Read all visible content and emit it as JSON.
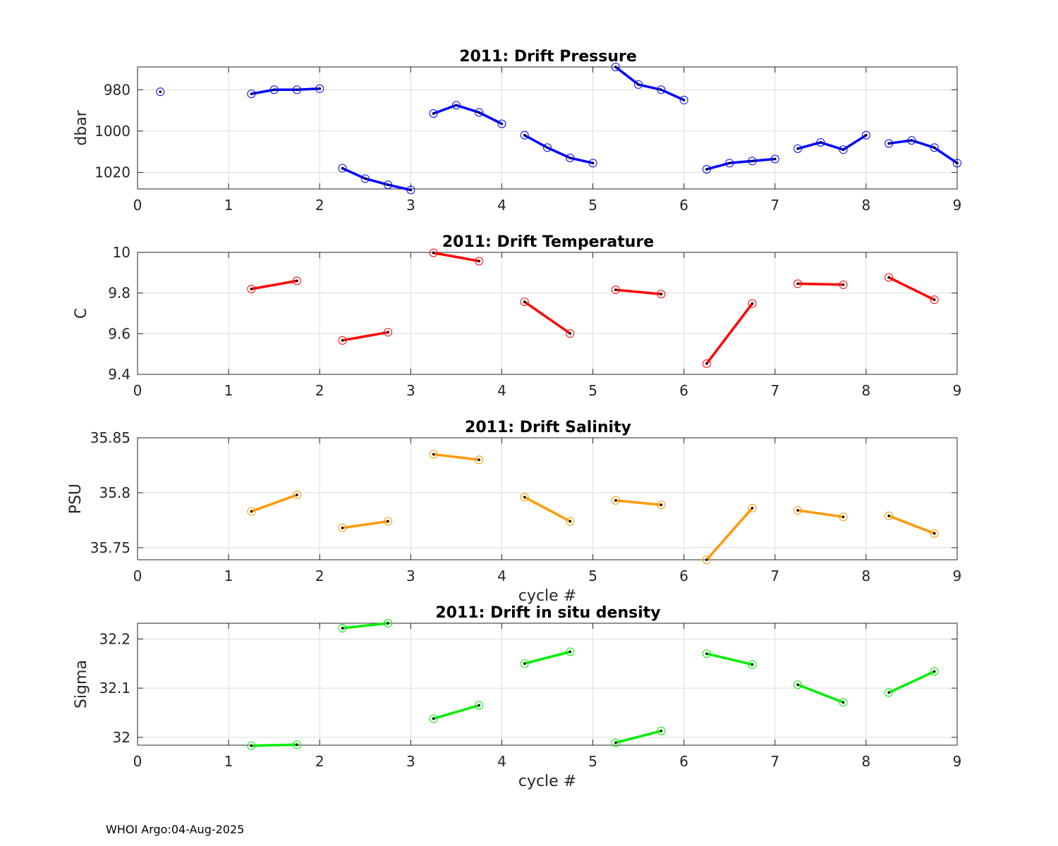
{
  "footer": "WHOI Argo:04-Aug-2025",
  "chart_data": [
    {
      "type": "line",
      "title": "2011: Drift Pressure",
      "xlabel": "",
      "ylabel": "dbar",
      "xlim": [
        0,
        9
      ],
      "ylim": [
        1028,
        969
      ],
      "y_reversed": true,
      "xticks": [
        0,
        1,
        2,
        3,
        4,
        5,
        6,
        7,
        8,
        9
      ],
      "yticks": [
        980,
        1000,
        1020
      ],
      "grid": true,
      "color": "#0000ff",
      "segments": [
        {
          "x": [
            0.25
          ],
          "y": [
            981
          ]
        },
        {
          "x": [
            1.25,
            1.5,
            1.75,
            2.0
          ],
          "y": [
            982,
            980,
            980,
            979.5
          ]
        },
        {
          "x": [
            2.25,
            2.5,
            2.75,
            3.0
          ],
          "y": [
            1018,
            1023,
            1026,
            1028.5
          ]
        },
        {
          "x": [
            3.25,
            3.5,
            3.75,
            4.0
          ],
          "y": [
            991.5,
            987.5,
            991,
            996.5
          ]
        },
        {
          "x": [
            4.25,
            4.5,
            4.75,
            5.0
          ],
          "y": [
            1002,
            1008,
            1013,
            1015.5
          ]
        },
        {
          "x": [
            5.25,
            5.5,
            5.75,
            6.0
          ],
          "y": [
            969,
            977.5,
            980,
            985
          ]
        },
        {
          "x": [
            6.25,
            6.5,
            6.75,
            7.0
          ],
          "y": [
            1018.5,
            1015.5,
            1014.5,
            1013.5
          ]
        },
        {
          "x": [
            7.25,
            7.5,
            7.75,
            8.0
          ],
          "y": [
            1008.5,
            1005.5,
            1009,
            1002
          ]
        },
        {
          "x": [
            8.25,
            8.5,
            8.75,
            9.0
          ],
          "y": [
            1006,
            1004.5,
            1008,
            1015.5
          ]
        }
      ]
    },
    {
      "type": "line",
      "title": "2011: Drift Temperature",
      "xlabel": "",
      "ylabel": "C",
      "xlim": [
        0,
        9
      ],
      "ylim": [
        9.4,
        10
      ],
      "xticks": [
        0,
        1,
        2,
        3,
        4,
        5,
        6,
        7,
        8,
        9
      ],
      "yticks": [
        9.4,
        9.6,
        9.8,
        10
      ],
      "grid": true,
      "color": "#ff0000",
      "segments": [
        {
          "x": [
            1.25,
            1.75
          ],
          "y": [
            9.82,
            9.86
          ]
        },
        {
          "x": [
            2.25,
            2.75
          ],
          "y": [
            9.567,
            9.607
          ]
        },
        {
          "x": [
            3.25,
            3.75
          ],
          "y": [
            9.998,
            9.957
          ]
        },
        {
          "x": [
            4.25,
            4.75
          ],
          "y": [
            9.757,
            9.601
          ]
        },
        {
          "x": [
            5.25,
            5.75
          ],
          "y": [
            9.816,
            9.795
          ]
        },
        {
          "x": [
            6.25,
            6.75
          ],
          "y": [
            9.453,
            9.748
          ]
        },
        {
          "x": [
            7.25,
            7.75
          ],
          "y": [
            9.846,
            9.841
          ]
        },
        {
          "x": [
            8.25,
            8.75
          ],
          "y": [
            9.877,
            9.767
          ]
        }
      ]
    },
    {
      "type": "line",
      "title": "2011: Drift Salinity",
      "xlabel": "cycle #",
      "ylabel": "PSU",
      "xlim": [
        0,
        9
      ],
      "ylim": [
        35.739,
        35.85
      ],
      "xticks": [
        0,
        1,
        2,
        3,
        4,
        5,
        6,
        7,
        8,
        9
      ],
      "yticks": [
        35.75,
        35.8,
        35.85
      ],
      "grid": true,
      "color": "#ff9900",
      "segments": [
        {
          "x": [
            1.25,
            1.75
          ],
          "y": [
            35.783,
            35.798
          ]
        },
        {
          "x": [
            2.25,
            2.75
          ],
          "y": [
            35.768,
            35.774
          ]
        },
        {
          "x": [
            3.25,
            3.75
          ],
          "y": [
            35.835,
            35.83
          ]
        },
        {
          "x": [
            4.25,
            4.75
          ],
          "y": [
            35.796,
            35.774
          ]
        },
        {
          "x": [
            5.25,
            5.75
          ],
          "y": [
            35.793,
            35.789
          ]
        },
        {
          "x": [
            6.25,
            6.75
          ],
          "y": [
            35.739,
            35.786
          ]
        },
        {
          "x": [
            7.25,
            7.75
          ],
          "y": [
            35.784,
            35.778
          ]
        },
        {
          "x": [
            8.25,
            8.75
          ],
          "y": [
            35.779,
            35.763
          ]
        }
      ]
    },
    {
      "type": "line",
      "title": "2011: Drift in situ density",
      "xlabel": "cycle #",
      "ylabel": "Sigma",
      "xlim": [
        0,
        9
      ],
      "ylim": [
        31.984,
        32.232
      ],
      "xticks": [
        0,
        1,
        2,
        3,
        4,
        5,
        6,
        7,
        8,
        9
      ],
      "yticks": [
        32,
        32.1,
        32.2
      ],
      "grid": true,
      "color": "#00ee00",
      "segments": [
        {
          "x": [
            1.25,
            1.75
          ],
          "y": [
            31.983,
            31.985
          ]
        },
        {
          "x": [
            2.25,
            2.75
          ],
          "y": [
            32.222,
            32.232
          ]
        },
        {
          "x": [
            3.25,
            3.75
          ],
          "y": [
            32.038,
            32.065
          ]
        },
        {
          "x": [
            4.25,
            4.75
          ],
          "y": [
            32.15,
            32.174
          ]
        },
        {
          "x": [
            5.25,
            5.75
          ],
          "y": [
            31.989,
            32.013
          ]
        },
        {
          "x": [
            6.25,
            6.75
          ],
          "y": [
            32.17,
            32.148
          ]
        },
        {
          "x": [
            7.25,
            7.75
          ],
          "y": [
            32.107,
            32.071
          ]
        },
        {
          "x": [
            8.25,
            8.75
          ],
          "y": [
            32.091,
            32.134
          ]
        }
      ]
    }
  ]
}
